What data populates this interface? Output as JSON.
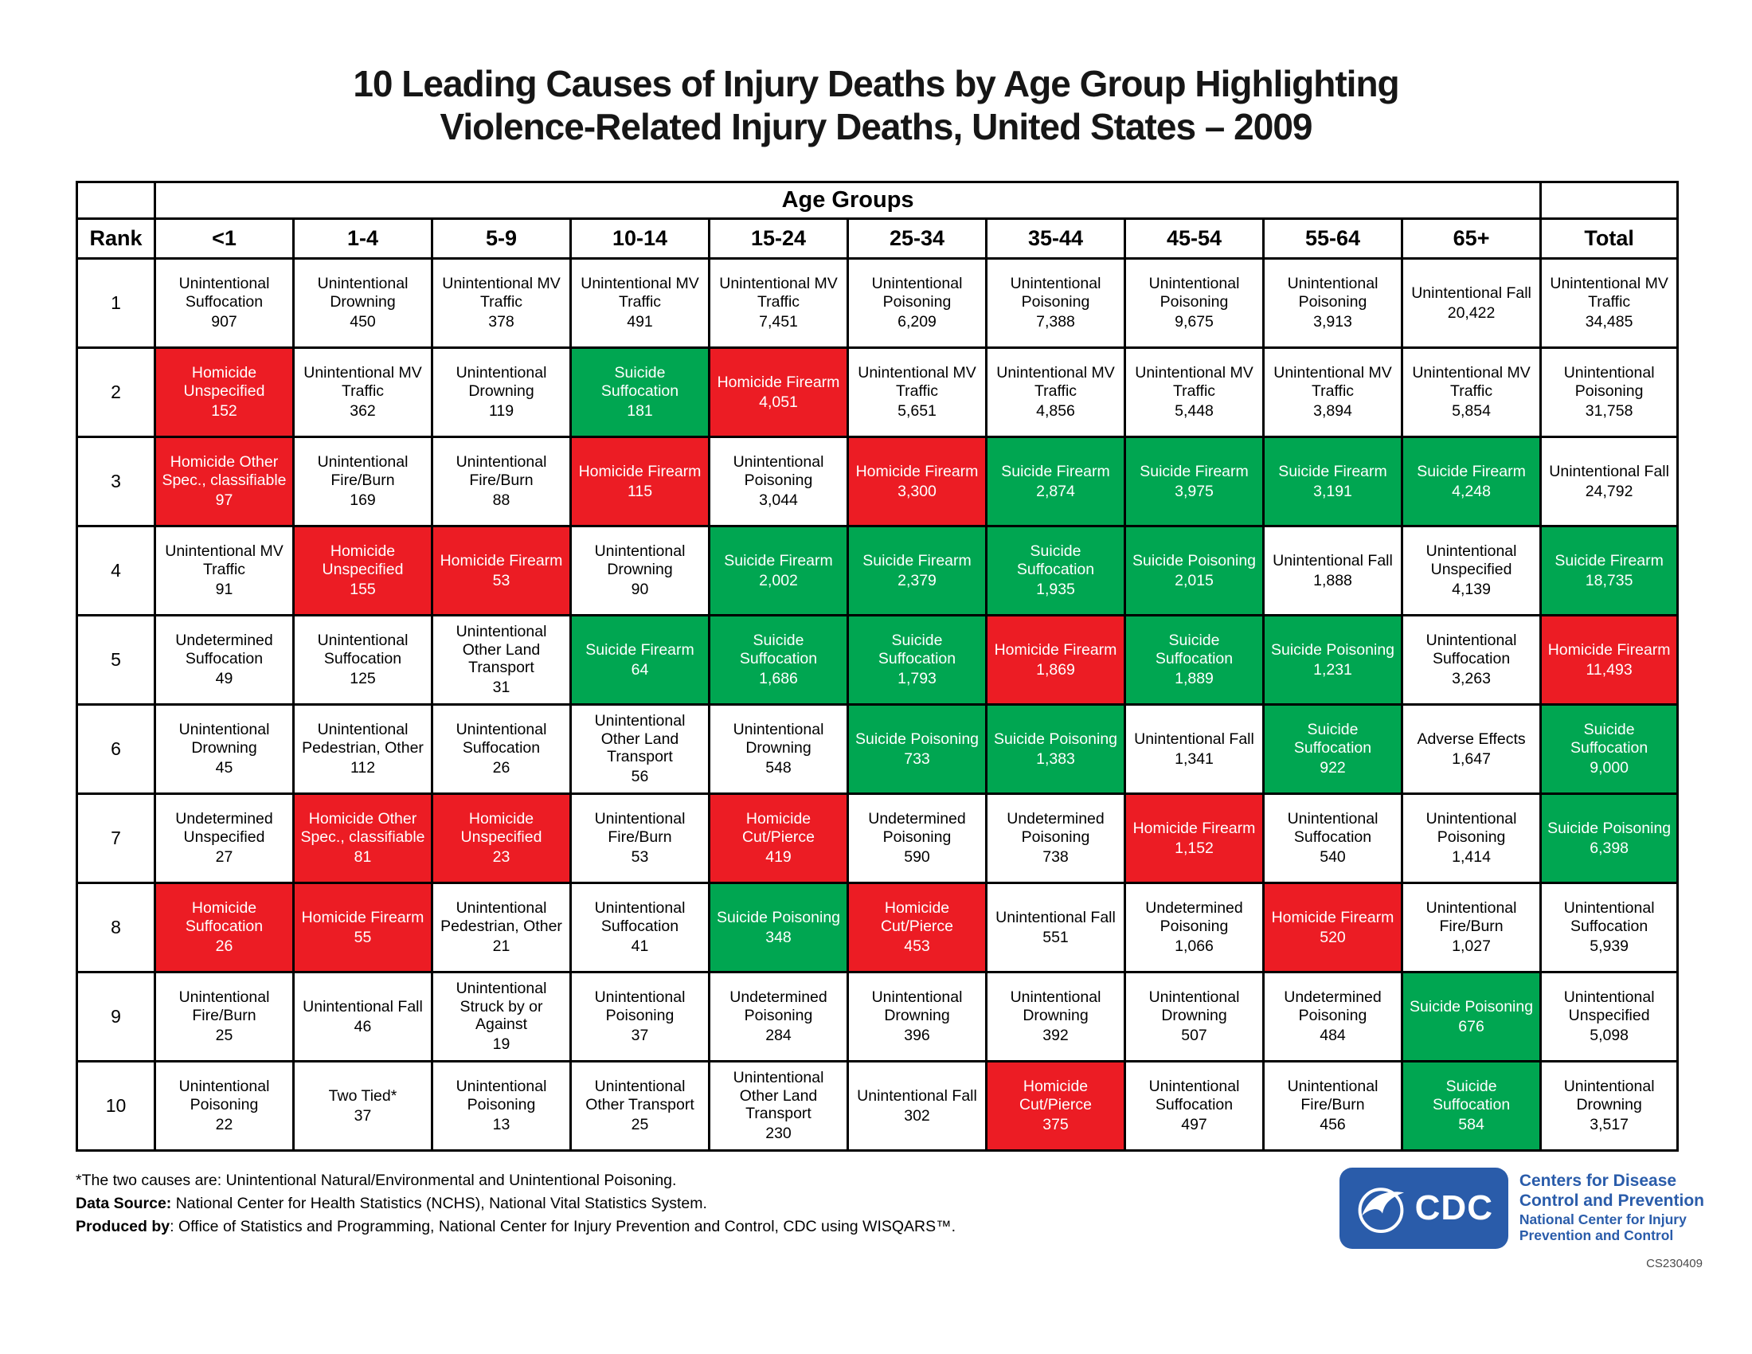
{
  "header": {
    "title_line1": "10 Leading Causes of Injury Deaths by Age Group Highlighting",
    "title_line2": "Violence-Related Injury Deaths, United States – 2009"
  },
  "chart_data": {
    "type": "table",
    "title": "10 Leading Causes of Injury Deaths by Age Group Highlighting Violence-Related Injury Deaths, United States – 2009",
    "column_group_label": "Age Groups",
    "columns": [
      "Rank",
      "<1",
      "1-4",
      "5-9",
      "10-14",
      "15-24",
      "25-34",
      "35-44",
      "45-54",
      "55-64",
      "65+",
      "Total"
    ],
    "colors": {
      "homicide": "#EC1C24",
      "suicide": "#00A651",
      "default": "#FFFFFF"
    },
    "legend_note": "red = homicide-related, green = suicide-related, white = other",
    "rows": [
      {
        "rank": "1",
        "cells": [
          {
            "cause": "Unintentional Suffocation",
            "count": "907",
            "category": "none"
          },
          {
            "cause": "Unintentional Drowning",
            "count": "450",
            "category": "none"
          },
          {
            "cause": "Unintentional MV Traffic",
            "count": "378",
            "category": "none"
          },
          {
            "cause": "Unintentional MV Traffic",
            "count": "491",
            "category": "none"
          },
          {
            "cause": "Unintentional MV Traffic",
            "count": "7,451",
            "category": "none"
          },
          {
            "cause": "Unintentional Poisoning",
            "count": "6,209",
            "category": "none"
          },
          {
            "cause": "Unintentional Poisoning",
            "count": "7,388",
            "category": "none"
          },
          {
            "cause": "Unintentional Poisoning",
            "count": "9,675",
            "category": "none"
          },
          {
            "cause": "Unintentional Poisoning",
            "count": "3,913",
            "category": "none"
          },
          {
            "cause": "Unintentional Fall",
            "count": "20,422",
            "category": "none"
          },
          {
            "cause": "Unintentional MV Traffic",
            "count": "34,485",
            "category": "none"
          }
        ]
      },
      {
        "rank": "2",
        "cells": [
          {
            "cause": "Homicide Unspecified",
            "count": "152",
            "category": "homicide"
          },
          {
            "cause": "Unintentional MV Traffic",
            "count": "362",
            "category": "none"
          },
          {
            "cause": "Unintentional Drowning",
            "count": "119",
            "category": "none"
          },
          {
            "cause": "Suicide Suffocation",
            "count": "181",
            "category": "suicide"
          },
          {
            "cause": "Homicide Firearm",
            "count": "4,051",
            "category": "homicide"
          },
          {
            "cause": "Unintentional MV Traffic",
            "count": "5,651",
            "category": "none"
          },
          {
            "cause": "Unintentional MV Traffic",
            "count": "4,856",
            "category": "none"
          },
          {
            "cause": "Unintentional MV Traffic",
            "count": "5,448",
            "category": "none"
          },
          {
            "cause": "Unintentional MV Traffic",
            "count": "3,894",
            "category": "none"
          },
          {
            "cause": "Unintentional MV Traffic",
            "count": "5,854",
            "category": "none"
          },
          {
            "cause": "Unintentional Poisoning",
            "count": "31,758",
            "category": "none"
          }
        ]
      },
      {
        "rank": "3",
        "cells": [
          {
            "cause": "Homicide Other Spec., classifiable",
            "count": "97",
            "category": "homicide"
          },
          {
            "cause": "Unintentional Fire/Burn",
            "count": "169",
            "category": "none"
          },
          {
            "cause": "Unintentional Fire/Burn",
            "count": "88",
            "category": "none"
          },
          {
            "cause": "Homicide Firearm",
            "count": "115",
            "category": "homicide"
          },
          {
            "cause": "Unintentional Poisoning",
            "count": "3,044",
            "category": "none"
          },
          {
            "cause": "Homicide Firearm",
            "count": "3,300",
            "category": "homicide"
          },
          {
            "cause": "Suicide Firearm",
            "count": "2,874",
            "category": "suicide"
          },
          {
            "cause": "Suicide Firearm",
            "count": "3,975",
            "category": "suicide"
          },
          {
            "cause": "Suicide Firearm",
            "count": "3,191",
            "category": "suicide"
          },
          {
            "cause": "Suicide Firearm",
            "count": "4,248",
            "category": "suicide"
          },
          {
            "cause": "Unintentional Fall",
            "count": "24,792",
            "category": "none"
          }
        ]
      },
      {
        "rank": "4",
        "cells": [
          {
            "cause": "Unintentional MV Traffic",
            "count": "91",
            "category": "none"
          },
          {
            "cause": "Homicide Unspecified",
            "count": "155",
            "category": "homicide"
          },
          {
            "cause": "Homicide Firearm",
            "count": "53",
            "category": "homicide"
          },
          {
            "cause": "Unintentional Drowning",
            "count": "90",
            "category": "none"
          },
          {
            "cause": "Suicide Firearm",
            "count": "2,002",
            "category": "suicide"
          },
          {
            "cause": "Suicide Firearm",
            "count": "2,379",
            "category": "suicide"
          },
          {
            "cause": "Suicide Suffocation",
            "count": "1,935",
            "category": "suicide"
          },
          {
            "cause": "Suicide Poisoning",
            "count": "2,015",
            "category": "suicide"
          },
          {
            "cause": "Unintentional Fall",
            "count": "1,888",
            "category": "none"
          },
          {
            "cause": "Unintentional Unspecified",
            "count": "4,139",
            "category": "none"
          },
          {
            "cause": "Suicide Firearm",
            "count": "18,735",
            "category": "suicide"
          }
        ]
      },
      {
        "rank": "5",
        "cells": [
          {
            "cause": "Undetermined Suffocation",
            "count": "49",
            "category": "none"
          },
          {
            "cause": "Unintentional Suffocation",
            "count": "125",
            "category": "none"
          },
          {
            "cause": "Unintentional Other Land Transport",
            "count": "31",
            "category": "none"
          },
          {
            "cause": "Suicide Firearm",
            "count": "64",
            "category": "suicide"
          },
          {
            "cause": "Suicide Suffocation",
            "count": "1,686",
            "category": "suicide"
          },
          {
            "cause": "Suicide Suffocation",
            "count": "1,793",
            "category": "suicide"
          },
          {
            "cause": "Homicide Firearm",
            "count": "1,869",
            "category": "homicide"
          },
          {
            "cause": "Suicide Suffocation",
            "count": "1,889",
            "category": "suicide"
          },
          {
            "cause": "Suicide Poisoning",
            "count": "1,231",
            "category": "suicide"
          },
          {
            "cause": "Unintentional Suffocation",
            "count": "3,263",
            "category": "none"
          },
          {
            "cause": "Homicide Firearm",
            "count": "11,493",
            "category": "homicide"
          }
        ]
      },
      {
        "rank": "6",
        "cells": [
          {
            "cause": "Unintentional Drowning",
            "count": "45",
            "category": "none"
          },
          {
            "cause": "Unintentional Pedestrian, Other",
            "count": "112",
            "category": "none"
          },
          {
            "cause": "Unintentional Suffocation",
            "count": "26",
            "category": "none"
          },
          {
            "cause": "Unintentional Other Land Transport",
            "count": "56",
            "category": "none"
          },
          {
            "cause": "Unintentional Drowning",
            "count": "548",
            "category": "none"
          },
          {
            "cause": "Suicide Poisoning",
            "count": "733",
            "category": "suicide"
          },
          {
            "cause": "Suicide Poisoning",
            "count": "1,383",
            "category": "suicide"
          },
          {
            "cause": "Unintentional Fall",
            "count": "1,341",
            "category": "none"
          },
          {
            "cause": "Suicide Suffocation",
            "count": "922",
            "category": "suicide"
          },
          {
            "cause": "Adverse Effects",
            "count": "1,647",
            "category": "none"
          },
          {
            "cause": "Suicide Suffocation",
            "count": "9,000",
            "category": "suicide"
          }
        ]
      },
      {
        "rank": "7",
        "cells": [
          {
            "cause": "Undetermined Unspecified",
            "count": "27",
            "category": "none"
          },
          {
            "cause": "Homicide Other Spec., classifiable",
            "count": "81",
            "category": "homicide"
          },
          {
            "cause": "Homicide Unspecified",
            "count": "23",
            "category": "homicide"
          },
          {
            "cause": "Unintentional Fire/Burn",
            "count": "53",
            "category": "none"
          },
          {
            "cause": "Homicide Cut/Pierce",
            "count": "419",
            "category": "homicide"
          },
          {
            "cause": "Undetermined Poisoning",
            "count": "590",
            "category": "none"
          },
          {
            "cause": "Undetermined Poisoning",
            "count": "738",
            "category": "none"
          },
          {
            "cause": "Homicide Firearm",
            "count": "1,152",
            "category": "homicide"
          },
          {
            "cause": "Unintentional Suffocation",
            "count": "540",
            "category": "none"
          },
          {
            "cause": "Unintentional Poisoning",
            "count": "1,414",
            "category": "none"
          },
          {
            "cause": "Suicide Poisoning",
            "count": "6,398",
            "category": "suicide"
          }
        ]
      },
      {
        "rank": "8",
        "cells": [
          {
            "cause": "Homicide Suffocation",
            "count": "26",
            "category": "homicide"
          },
          {
            "cause": "Homicide Firearm",
            "count": "55",
            "category": "homicide"
          },
          {
            "cause": "Unintentional Pedestrian, Other",
            "count": "21",
            "category": "none"
          },
          {
            "cause": "Unintentional Suffocation",
            "count": "41",
            "category": "none"
          },
          {
            "cause": "Suicide Poisoning",
            "count": "348",
            "category": "suicide"
          },
          {
            "cause": "Homicide Cut/Pierce",
            "count": "453",
            "category": "homicide"
          },
          {
            "cause": "Unintentional Fall",
            "count": "551",
            "category": "none"
          },
          {
            "cause": "Undetermined Poisoning",
            "count": "1,066",
            "category": "none"
          },
          {
            "cause": "Homicide Firearm",
            "count": "520",
            "category": "homicide"
          },
          {
            "cause": "Unintentional Fire/Burn",
            "count": "1,027",
            "category": "none"
          },
          {
            "cause": "Unintentional Suffocation",
            "count": "5,939",
            "category": "none"
          }
        ]
      },
      {
        "rank": "9",
        "cells": [
          {
            "cause": "Unintentional Fire/Burn",
            "count": "25",
            "category": "none"
          },
          {
            "cause": "Unintentional Fall",
            "count": "46",
            "category": "none"
          },
          {
            "cause": "Unintentional Struck by or Against",
            "count": "19",
            "category": "none"
          },
          {
            "cause": "Unintentional Poisoning",
            "count": "37",
            "category": "none"
          },
          {
            "cause": "Undetermined Poisoning",
            "count": "284",
            "category": "none"
          },
          {
            "cause": "Unintentional Drowning",
            "count": "396",
            "category": "none"
          },
          {
            "cause": "Unintentional Drowning",
            "count": "392",
            "category": "none"
          },
          {
            "cause": "Unintentional Drowning",
            "count": "507",
            "category": "none"
          },
          {
            "cause": "Undetermined Poisoning",
            "count": "484",
            "category": "none"
          },
          {
            "cause": "Suicide Poisoning",
            "count": "676",
            "category": "suicide"
          },
          {
            "cause": "Unintentional Unspecified",
            "count": "5,098",
            "category": "none"
          }
        ]
      },
      {
        "rank": "10",
        "cells": [
          {
            "cause": "Unintentional Poisoning",
            "count": "22",
            "category": "none"
          },
          {
            "cause": "Two Tied*",
            "count": "37",
            "category": "none"
          },
          {
            "cause": "Unintentional Poisoning",
            "count": "13",
            "category": "none"
          },
          {
            "cause": "Unintentional Other Transport",
            "count": "25",
            "category": "none"
          },
          {
            "cause": "Unintentional Other Land Transport",
            "count": "230",
            "category": "none"
          },
          {
            "cause": "Unintentional Fall",
            "count": "302",
            "category": "none"
          },
          {
            "cause": "Homicide Cut/Pierce",
            "count": "375",
            "category": "homicide"
          },
          {
            "cause": "Unintentional Suffocation",
            "count": "497",
            "category": "none"
          },
          {
            "cause": "Unintentional Fire/Burn",
            "count": "456",
            "category": "none"
          },
          {
            "cause": "Suicide Suffocation",
            "count": "584",
            "category": "suicide"
          },
          {
            "cause": "Unintentional Drowning",
            "count": "3,517",
            "category": "none"
          }
        ]
      }
    ]
  },
  "footnotes": {
    "line1": "*The two causes are: Unintentional Natural/Environmental and Unintentional Poisoning.",
    "line2_bold": "Data Source: ",
    "line2_rest": "National Center for Health Statistics (NCHS), National Vital Statistics System.",
    "line3_bold": "Produced by",
    "line3_rest": ": Office of Statistics and Programming, National Center for Injury Prevention and Control, CDC using WISQARS™."
  },
  "logo": {
    "cdc": "CDC",
    "org_line1": "Centers for Disease",
    "org_line2": "Control and Prevention",
    "org_line3": "National Center for Injury",
    "org_line4": "Prevention and Control",
    "code": "CS230409",
    "color": "#2A5CAA"
  }
}
